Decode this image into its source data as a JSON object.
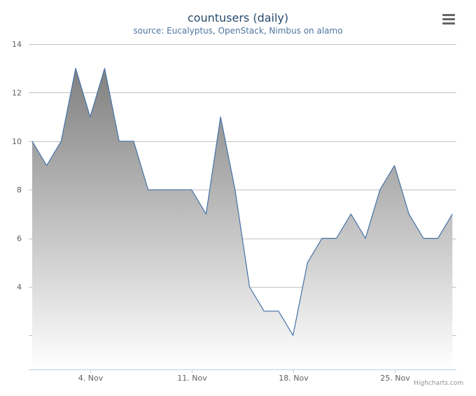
{
  "chart_data": {
    "type": "area",
    "title": "countusers (daily)",
    "subtitle": "source: Eucalyptus, OpenStack, Nimbus on alamo",
    "x_start": "2013-10-31",
    "x_tick_labels": [
      "4. Nov",
      "11. Nov",
      "18. Nov",
      "25. Nov"
    ],
    "x_tick_dates": [
      "2013-11-04",
      "2013-11-11",
      "2013-11-18",
      "2013-11-25"
    ],
    "y_ticks": [
      4,
      6,
      8,
      10,
      12,
      14
    ],
    "ylim": [
      0.6,
      14
    ],
    "grid": true,
    "series": [
      {
        "values": [
          10,
          9,
          10,
          13,
          11,
          13,
          10,
          10,
          8,
          8,
          8,
          8,
          7,
          11,
          8,
          4,
          3,
          3,
          2,
          5,
          6,
          6,
          7,
          6,
          8,
          9,
          7,
          6,
          6,
          7
        ]
      }
    ],
    "colors": {
      "line": "#4572a7",
      "fill_top": "#808080",
      "fill_bottom": "#ffffff",
      "grid": "#c0c0c0"
    }
  },
  "menu_icon": "hamburger-menu-icon",
  "credits": "Highcharts.com"
}
